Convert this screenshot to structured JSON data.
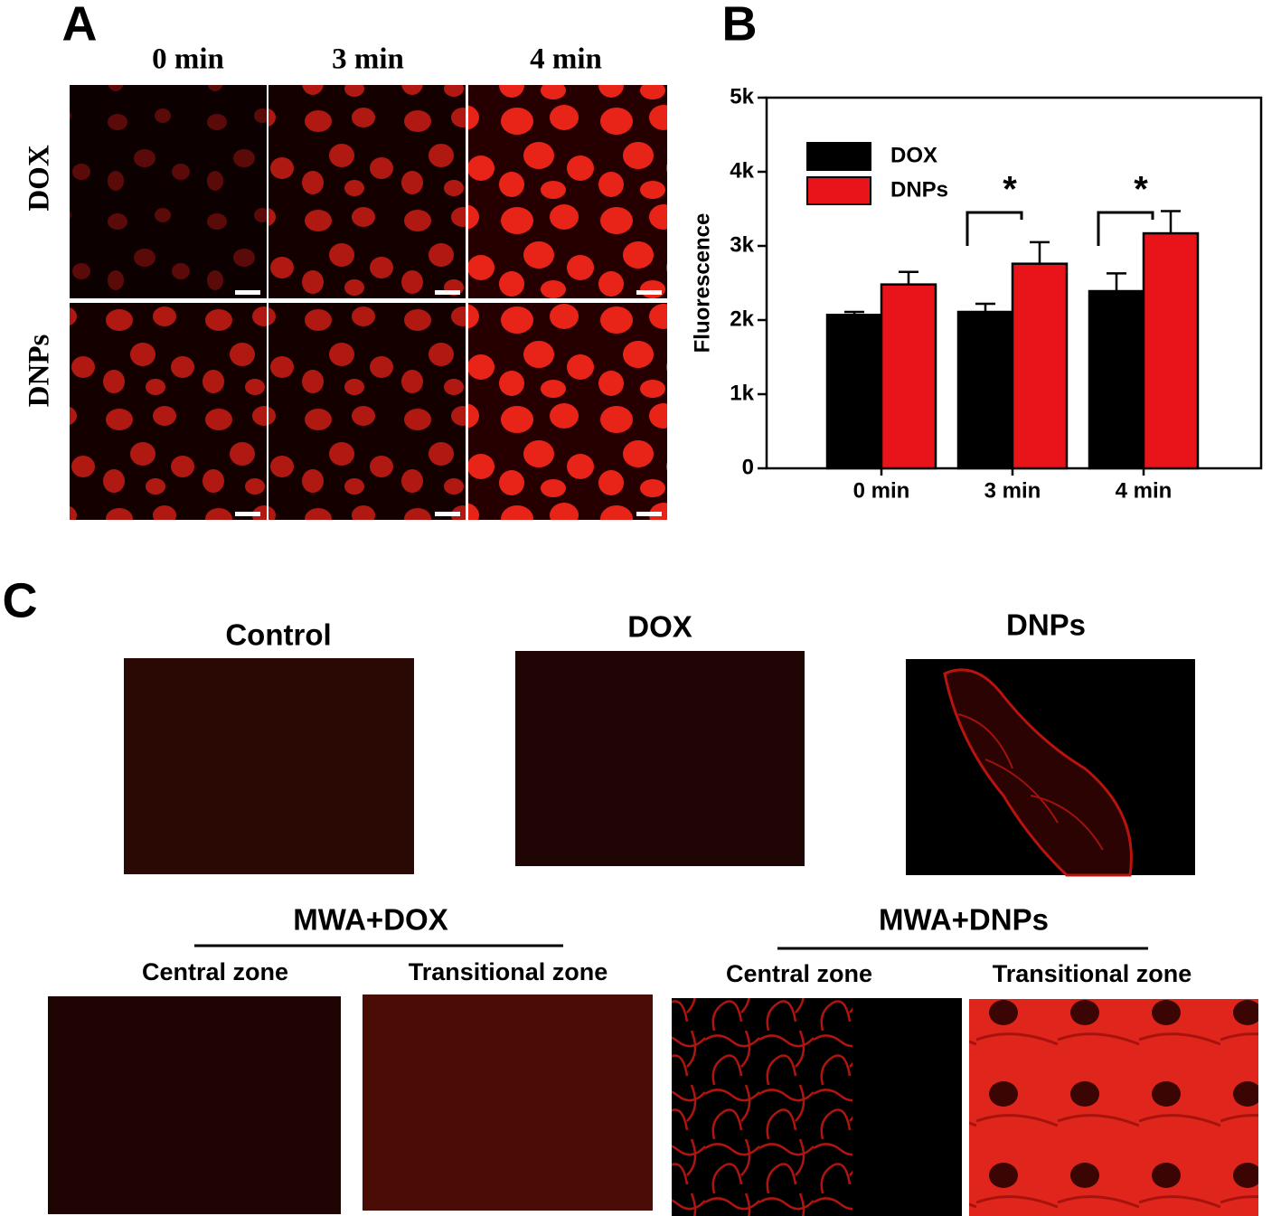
{
  "panel_a": {
    "label": "A",
    "columns": [
      "0 min",
      "3 min",
      "4 min"
    ],
    "rows": [
      "DOX",
      "DNPs"
    ]
  },
  "chart_data": {
    "type": "bar",
    "panel_label": "B",
    "ylabel": "Fluorescence",
    "categories": [
      "0 min",
      "3 min",
      "4 min"
    ],
    "series": [
      {
        "name": "DOX",
        "color": "#000000",
        "values": [
          2070,
          2110,
          2390
        ],
        "errors": [
          40,
          110,
          240
        ]
      },
      {
        "name": "DNPs",
        "color": "#e8141a",
        "values": [
          2480,
          2760,
          3170
        ],
        "errors": [
          170,
          290,
          300
        ]
      }
    ],
    "ylim": [
      0,
      5000
    ],
    "yticks": [
      {
        "value": 0,
        "label": "0"
      },
      {
        "value": 1000,
        "label": "1k"
      },
      {
        "value": 2000,
        "label": "2k"
      },
      {
        "value": 3000,
        "label": "3k"
      },
      {
        "value": 4000,
        "label": "4k"
      },
      {
        "value": 5000,
        "label": "5k"
      }
    ],
    "legend": "upper left",
    "annotations": [
      {
        "text": "*",
        "category": "3 min"
      },
      {
        "text": "*",
        "category": "4 min"
      }
    ]
  },
  "panel_c": {
    "label": "C",
    "top": [
      "Control",
      "DOX",
      "DNPs"
    ],
    "groups": [
      {
        "title": "MWA+DOX",
        "zones": [
          "Central zone",
          "Transitional zone"
        ]
      },
      {
        "title": "MWA+DNPs",
        "zones": [
          "Central zone",
          "Transitional zone"
        ]
      }
    ]
  }
}
